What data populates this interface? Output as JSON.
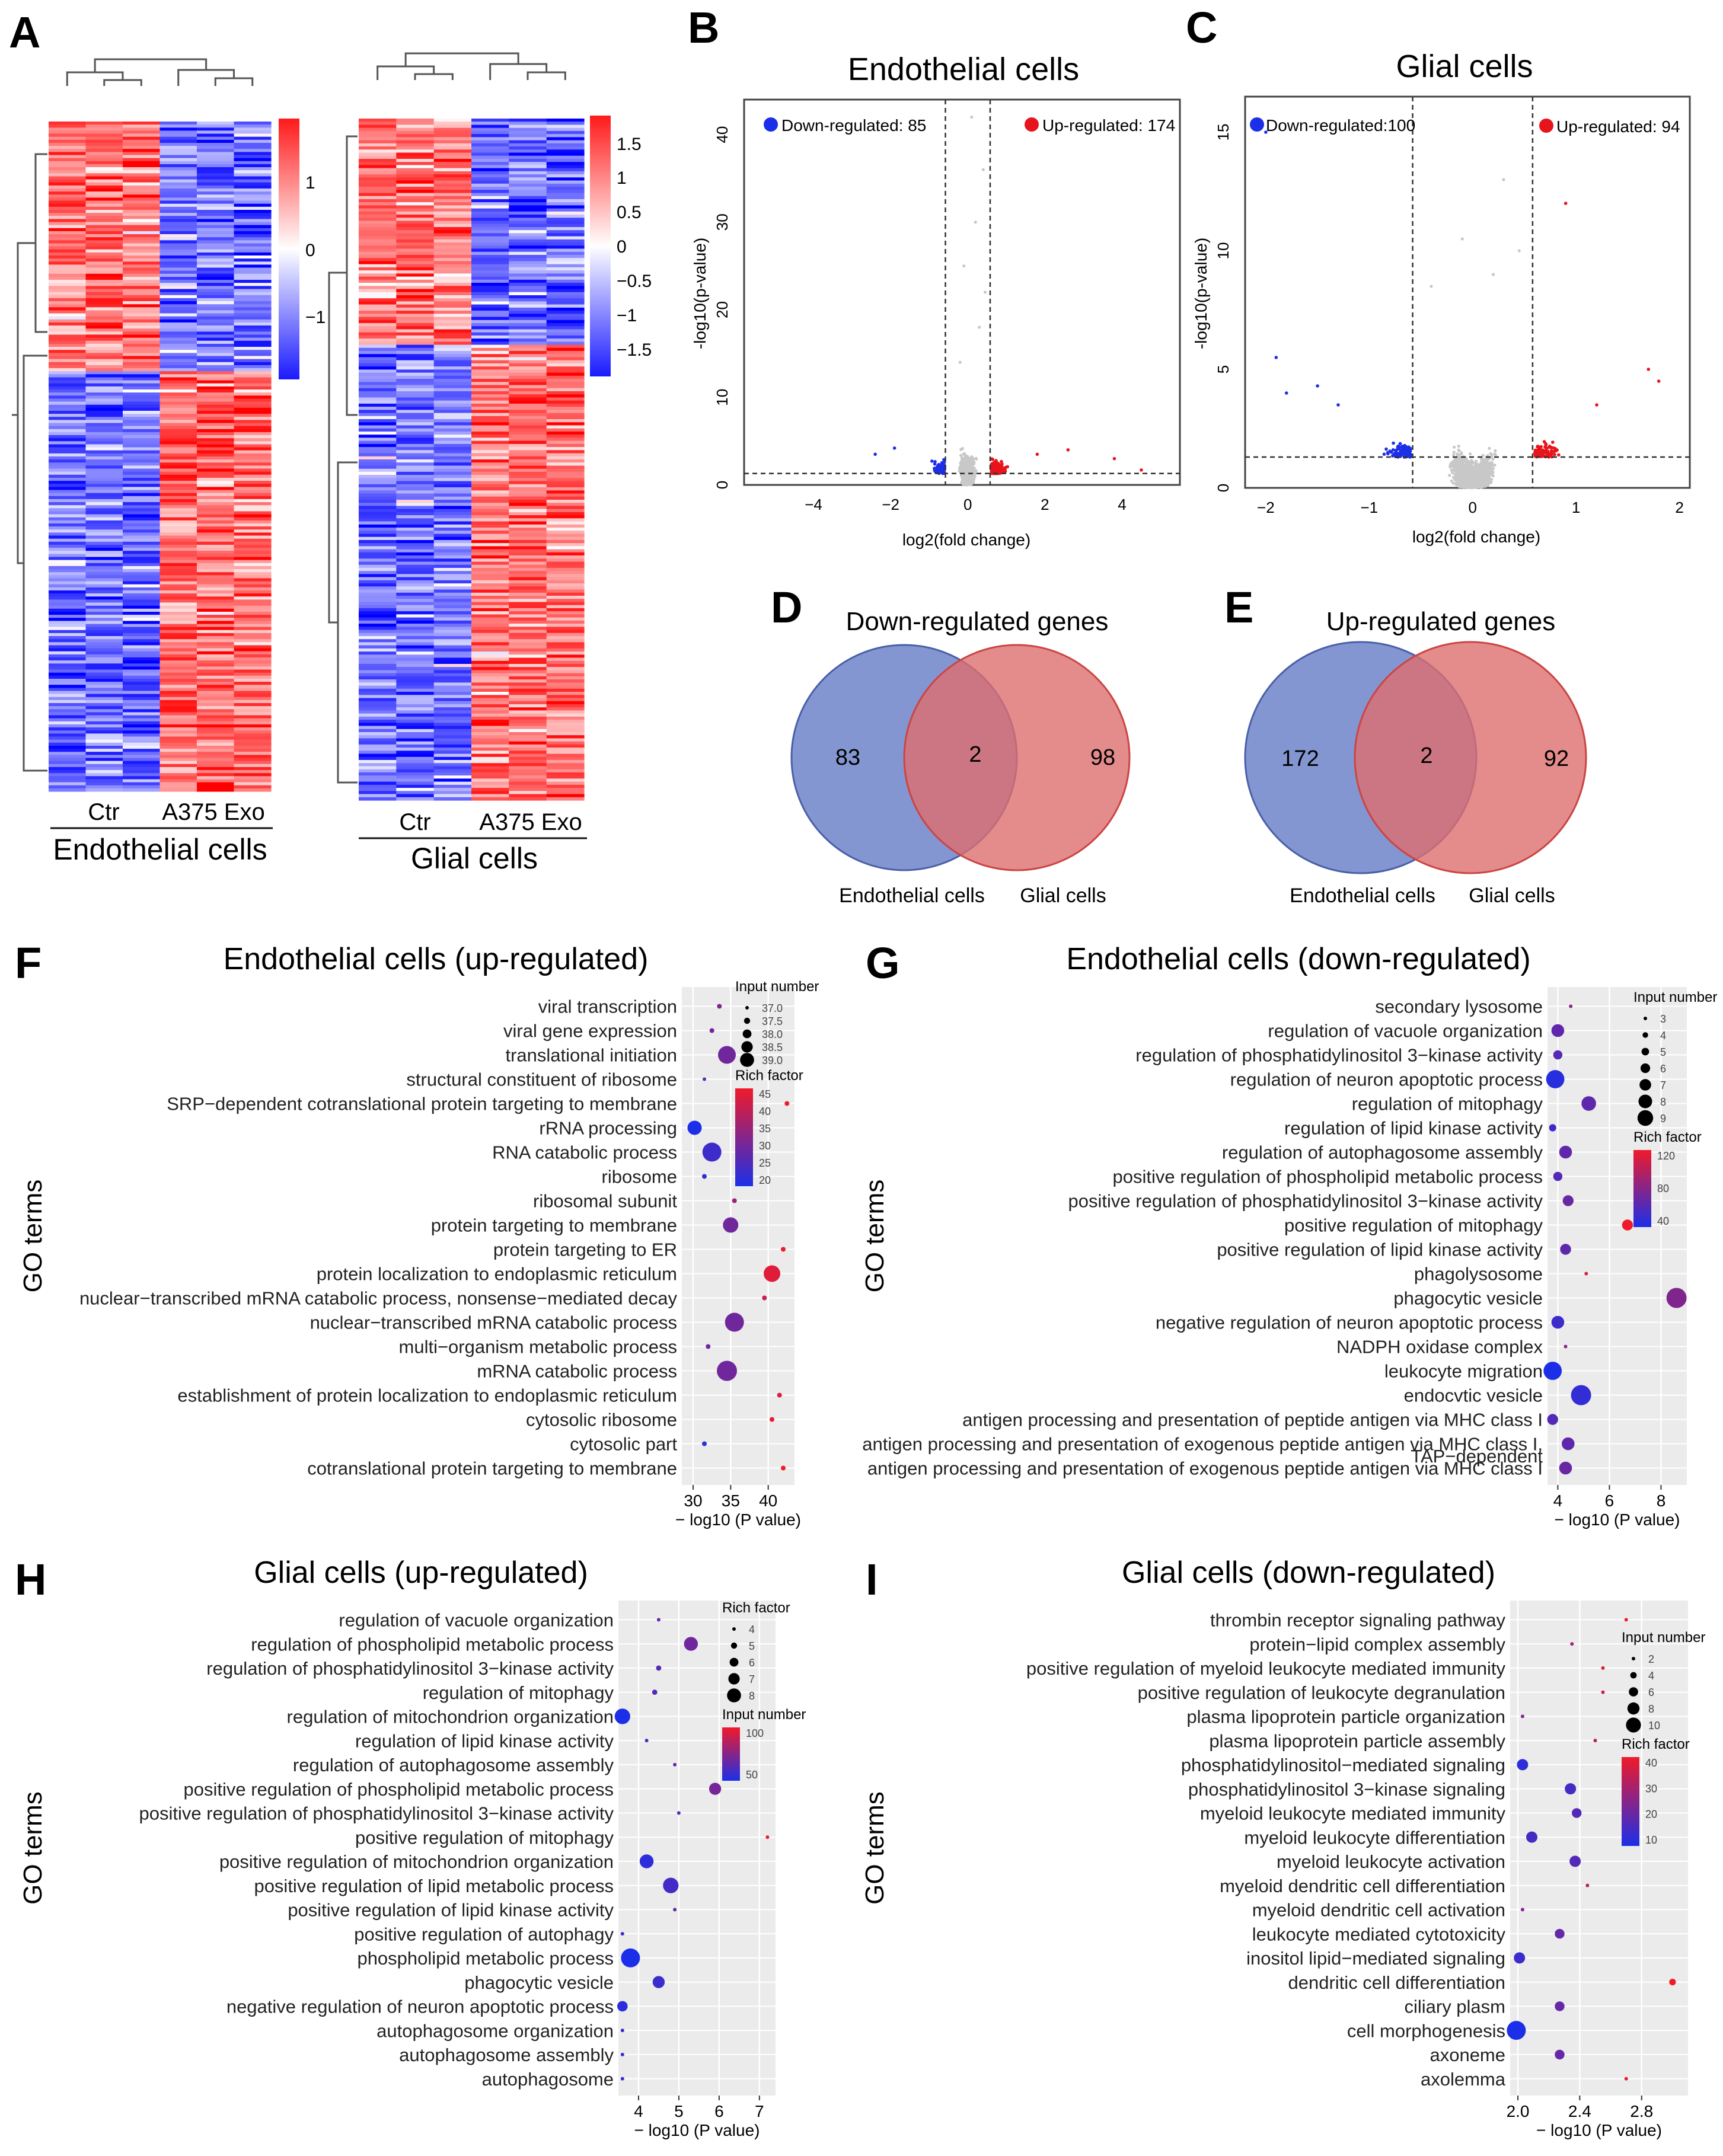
{
  "panels": {
    "A": "A",
    "B": "B",
    "C": "C",
    "D": "D",
    "E": "E",
    "F": "F",
    "G": "G",
    "H": "H",
    "I": "I"
  },
  "heatmaps": {
    "endo": {
      "label": "Endothelial cells",
      "groups": [
        "Ctr",
        "A375 Exo"
      ],
      "scale_ticks": [
        "1",
        "0",
        "−1"
      ]
    },
    "glial": {
      "label": "Glial cells",
      "groups": [
        "Ctr",
        "A375 Exo"
      ],
      "scale_ticks": [
        "1.5",
        "1",
        "0.5",
        "0",
        "−0.5",
        "−1",
        "−1.5"
      ]
    }
  },
  "colors": {
    "up": "#e8141b",
    "down": "#1c2fe8",
    "gray": "#c8c8c8",
    "venn_blue": "#6f84c9",
    "venn_red": "#dd6e6e",
    "venn_overlap": "#9b5475",
    "panel_bg": "#ebebeb"
  },
  "volcanoB": {
    "title": "Endothelial cells",
    "down_label": "Down-regulated: 85",
    "up_label": "Up-regulated: 174",
    "xlabel": "log2(fold change)",
    "ylabel": "-log10(p-value)",
    "xticks": [
      "−4",
      "−2",
      "0",
      "2",
      "4"
    ],
    "yticks": [
      "0",
      "10",
      "20",
      "30",
      "40"
    ],
    "xlim": [
      -5.8,
      5.5
    ],
    "ylim": [
      0,
      44
    ],
    "vlines": [
      -0.58,
      0.58
    ],
    "hline": 1.3
  },
  "volcanoC": {
    "title": "Glial cells",
    "down_label": "Down-regulated:100",
    "up_label": "Up-regulated: 94",
    "xlabel": "log2(fold change)",
    "ylabel": "-log10(p-value)",
    "xticks": [
      "−2",
      "−1",
      "0",
      "1",
      "2"
    ],
    "yticks": [
      "0",
      "5",
      "10",
      "15"
    ],
    "xlim": [
      -2.2,
      2.1
    ],
    "ylim": [
      0,
      16.5
    ],
    "vlines": [
      -0.58,
      0.58
    ],
    "hline": 1.3
  },
  "vennD": {
    "title": "Down-regulated genes",
    "left": "83",
    "mid": "2",
    "right": "98",
    "left_label": "Endothelial cells",
    "right_label": "Glial cells"
  },
  "vennE": {
    "title": "Up-regulated genes",
    "left": "172",
    "mid": "2",
    "right": "92",
    "left_label": "Endothelial cells",
    "right_label": "Glial cells"
  },
  "chart_data": [
    {
      "id": "F",
      "type": "scatter",
      "title": "Endothelial cells (up-regulated)",
      "ylabel": "GO terms",
      "xlabel": "− log10 (P value)",
      "xlim": [
        28.5,
        43.5
      ],
      "xticks": [
        30,
        35,
        40
      ],
      "size_legend": {
        "title": "Input number",
        "labels": [
          "37.0",
          "37.5",
          "38.0",
          "38.5",
          "39.0"
        ]
      },
      "color_legend": {
        "title": "Rich factor",
        "labels": [
          "45",
          "40",
          "35",
          "30",
          "25",
          "20"
        ]
      },
      "terms": [
        "viral transcription",
        "viral gene expression",
        "translational initiation",
        "structural constituent of ribosome",
        "SRP−dependent cotranslational protein targeting to membrane",
        "rRNA processing",
        "RNA catabolic process",
        "ribosome",
        "ribosomal subunit",
        "protein targeting to membrane",
        "protein targeting to ER",
        "protein localization to endoplasmic reticulum",
        "nuclear−transcribed mRNA catabolic process, nonsense−mediated decay",
        "nuclear−transcribed mRNA catabolic process",
        "multi−organism metabolic process",
        "mRNA catabolic process",
        "establishment of protein localization to endoplasmic reticulum",
        "cytosolic ribosome",
        "cytosolic part",
        "cotranslational protein targeting to membrane"
      ],
      "x": [
        33.5,
        32.5,
        34.5,
        31.5,
        42.5,
        30.2,
        32.5,
        31.5,
        35.5,
        35.0,
        42.0,
        40.5,
        39.5,
        35.5,
        32.0,
        34.5,
        41.5,
        40.5,
        31.5,
        42.0
      ],
      "size": [
        3,
        3,
        14,
        2,
        3,
        11,
        15,
        3,
        3,
        12,
        3,
        13,
        3,
        15,
        3,
        16,
        3,
        3,
        3,
        3
      ],
      "rich": [
        32,
        30,
        30,
        28,
        45,
        20,
        24,
        22,
        35,
        30,
        45,
        43,
        40,
        30,
        30,
        30,
        43,
        44,
        22,
        45
      ]
    },
    {
      "id": "G",
      "type": "scatter",
      "title": "Endothelial cells (down-regulated)",
      "ylabel": "GO terms",
      "xlabel": "− log10 (P value)",
      "xlim": [
        3.6,
        9.0
      ],
      "xticks": [
        4,
        6,
        8
      ],
      "size_legend": {
        "title": "Input number",
        "labels": [
          "3",
          "4",
          "5",
          "6",
          "7",
          "8",
          "9"
        ]
      },
      "color_legend": {
        "title": "Rich factor",
        "labels": [
          "120",
          "80",
          "40"
        ]
      },
      "terms": [
        "secondary lysosome",
        "regulation of vacuole organization",
        "regulation of phosphatidylinositol 3−kinase activity",
        "regulation of neuron apoptotic process",
        "regulation of mitophagy",
        "regulation of lipid kinase activity",
        "regulation of autophagosome assembly",
        "positive regulation of phospholipid metabolic process",
        "positive regulation of phosphatidylinositol 3−kinase activity",
        "positive regulation of mitophagy",
        "positive regulation of lipid kinase activity",
        "phagolysosome",
        "phagocytic vesicle",
        "negative regulation of neuron apoptotic process",
        "NADPH oxidase complex",
        "leukocyte migration",
        "endocytic vesicle",
        "antigen processing and presentation of peptide antigen via MHC class I",
        "antigen processing and presentation of exogenous peptide antigen via MHC class I, TAP−dependent",
        "antigen processing and presentation of exogenous peptide antigen via MHC class I"
      ],
      "term_labels": [
        "secondary lysosome",
        "regulation of vacuole organization",
        "regulation of phosphatidylinositol 3−kinase activity",
        "regulation of neuron apoptotic process",
        "regulation of mitophagy",
        "regulation of lipid kinase activity",
        "regulation of autophagosome assembly",
        "positive regulation of phospholipid metabolic process",
        "positive regulation of phosphatidylinositol 3−kinase activity",
        "positive regulation of mitophagy",
        "positive regulation of lipid kinase activity",
        "phagolysosome",
        "phagocytic vesicle",
        "negative regulation of neuron apoptotic process",
        "NADPH oxidase complex",
        "leukocyte migration",
        "endocvtic vesicle",
        "antigen processing and presentation of peptide antigen via MHC class I",
        "antigen processing and presentation of exogenous peptide antigen via MHC class I,",
        "antigen processing and presentation of exogenous peptide antigen via MHC class I"
      ],
      "extra_label": "TAP−dependent",
      "x": [
        4.5,
        4.0,
        4.0,
        3.9,
        5.2,
        3.8,
        4.3,
        4.0,
        4.4,
        6.7,
        4.3,
        5.1,
        8.6,
        4.0,
        4.3,
        3.8,
        4.9,
        3.8,
        4.4,
        4.3
      ],
      "size": [
        3,
        8,
        6,
        11,
        9,
        5,
        8,
        6,
        7,
        7,
        7,
        3,
        12,
        8,
        3,
        11,
        12,
        7,
        8,
        8
      ],
      "rich": [
        75,
        55,
        50,
        30,
        55,
        40,
        55,
        50,
        60,
        120,
        55,
        110,
        70,
        40,
        75,
        25,
        35,
        50,
        55,
        60
      ]
    },
    {
      "id": "H",
      "type": "scatter",
      "title": "Glial cells (up-regulated)",
      "ylabel": "GO terms",
      "xlabel": "− log10 (P value)",
      "xlim": [
        3.5,
        7.4
      ],
      "xticks": [
        4,
        5,
        6,
        7
      ],
      "size_legend": {
        "title": "Rich factor",
        "labels": [
          "4",
          "5",
          "6",
          "7",
          "8"
        ]
      },
      "color_legend": {
        "title": "Input number",
        "labels": [
          "100",
          "50"
        ]
      },
      "terms": [
        "regulation of vacuole organization",
        "regulation of phospholipid metabolic process",
        "regulation of phosphatidylinositol 3−kinase activity",
        "regulation of mitophagy",
        "regulation of mitochondrion organization",
        "regulation of lipid kinase activity",
        "regulation of autophagosome assembly",
        "positive regulation of phospholipid metabolic process",
        "positive regulation of phosphatidylinositol 3−kinase activity",
        "positive regulation of mitophagy",
        "positive regulation of mitochondrion organization",
        "positive regulation of lipid metabolic process",
        "positive regulation of lipid kinase activity",
        "positive regulation of autophagy",
        "phospholipid metabolic process",
        "phagocytic vesicle",
        "negative regulation of neuron apoptotic process",
        "autophagosome organization",
        "autophagosome assembly",
        "autophagosome"
      ],
      "x": [
        4.5,
        5.3,
        4.5,
        4.4,
        3.6,
        4.2,
        4.9,
        5.9,
        5.0,
        7.2,
        4.2,
        4.8,
        4.9,
        3.6,
        3.8,
        4.5,
        3.6,
        3.6,
        3.6,
        3.6
      ],
      "size": [
        3,
        9,
        4,
        4,
        10,
        3,
        3,
        8,
        3,
        3,
        9,
        10,
        3,
        3,
        12,
        8,
        7,
        3,
        3,
        3
      ],
      "rich": [
        60,
        75,
        55,
        55,
        20,
        50,
        65,
        80,
        60,
        160,
        30,
        45,
        65,
        40,
        20,
        40,
        30,
        35,
        35,
        35
      ]
    },
    {
      "id": "I",
      "type": "scatter",
      "title": "Glial cells (down-regulated)",
      "ylabel": "GO terms",
      "xlabel": "− log10 (P value)",
      "xlim": [
        1.95,
        3.1
      ],
      "xticks": [
        2.0,
        2.4,
        2.8
      ],
      "tick_labels": [
        "2.0",
        "2.4",
        "2.8"
      ],
      "size_legend": {
        "title": "Input number",
        "labels": [
          "2",
          "4",
          "6",
          "8",
          "10"
        ]
      },
      "color_legend": {
        "title": "Rich factor",
        "labels": [
          "40",
          "30",
          "20",
          "10"
        ]
      },
      "terms": [
        "thrombin receptor signaling pathway",
        "protein−lipid complex assembly",
        "positive regulation of myeloid leukocyte mediated immunity",
        "positive regulation of leukocyte degranulation",
        "plasma lipoprotein particle organization",
        "plasma lipoprotein particle assembly",
        "phosphatidylinositol−mediated signaling",
        "phosphatidylinositol 3−kinase signaling",
        "myeloid leukocyte mediated immunity",
        "myeloid leukocyte differentiation",
        "myeloid leukocyte activation",
        "myeloid dendritic cell differentiation",
        "myeloid dendritic cell activation",
        "leukocyte mediated cytotoxicity",
        "inositol lipid−mediated signaling",
        "dendritic cell differentiation",
        "ciliary plasm",
        "cell morphogenesis",
        "axoneme",
        "axolemma"
      ],
      "x": [
        2.7,
        2.35,
        2.55,
        2.55,
        2.03,
        2.5,
        2.03,
        2.34,
        2.38,
        2.09,
        2.37,
        2.45,
        2.03,
        2.27,
        2.01,
        3.0,
        2.27,
        1.99,
        2.27,
        2.7
      ],
      "size": [
        2,
        2,
        2,
        2,
        2,
        2,
        7,
        7,
        6,
        7,
        7,
        2,
        2,
        6,
        7,
        4,
        6,
        12,
        6,
        2
      ],
      "rich": [
        38,
        25,
        35,
        32,
        20,
        28,
        6,
        10,
        12,
        10,
        12,
        28,
        20,
        15,
        8,
        38,
        15,
        3,
        15,
        38
      ]
    }
  ]
}
